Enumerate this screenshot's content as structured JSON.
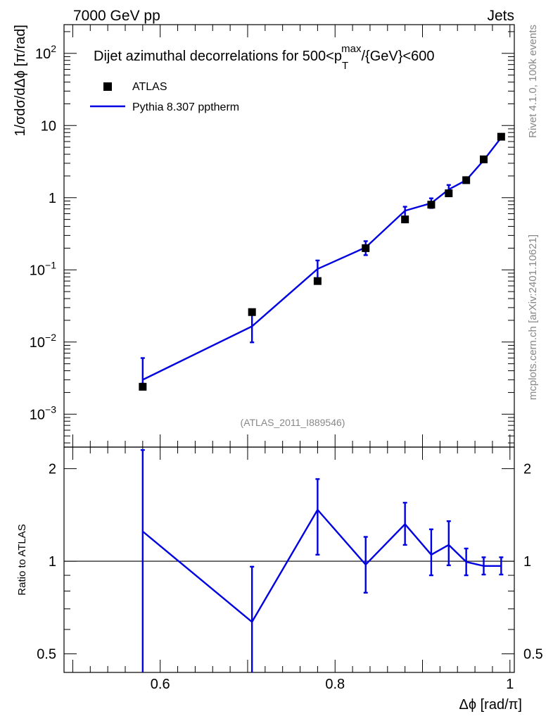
{
  "header": {
    "left": "7000 GeV pp",
    "right": "Jets"
  },
  "side_labels": {
    "rivet": "Rivet 4.1.0,  100k events",
    "mcplots": "mcplots.cern.ch [arXiv:2401.10621]"
  },
  "chart_data": [
    {
      "type": "scatter",
      "panel": "main",
      "title_prefix": "Dijet azimuthal decorrelations for 500<p",
      "title_sub": "T",
      "title_sup": "max",
      "title_suffix": "/{GeV}<600",
      "ylabel": "1/σdσ/dΔϕ [π/rad]",
      "yscale": "log",
      "ylim": [
        0.00035,
        250
      ],
      "xlim": [
        0.49,
        1.005
      ],
      "watermark": "(ATLAS_2011_I889546)",
      "y_ticks": [
        {
          "value": 0.001,
          "base": "10",
          "exp": "−3"
        },
        {
          "value": 0.01,
          "base": "10",
          "exp": "−2"
        },
        {
          "value": 0.1,
          "base": "10",
          "exp": "−1"
        },
        {
          "value": 1,
          "base": "1",
          "exp": ""
        },
        {
          "value": 10,
          "base": "10",
          "exp": ""
        },
        {
          "value": 100,
          "base": "10",
          "exp": "2"
        }
      ],
      "legend": [
        {
          "label": "ATLAS",
          "style": "marker"
        },
        {
          "label": "Pythia 8.307 pptherm",
          "style": "line"
        }
      ],
      "x": [
        0.58,
        0.705,
        0.78,
        0.835,
        0.88,
        0.91,
        0.93,
        0.95,
        0.97,
        0.99
      ],
      "series": [
        {
          "name": "ATLAS",
          "values": [
            0.0024,
            0.026,
            0.07,
            0.2,
            0.5,
            0.8,
            1.15,
            1.75,
            3.4,
            7.0
          ]
        },
        {
          "name": "Pythia 8.307 pptherm",
          "color": "#0000e0",
          "values": [
            0.003,
            0.0165,
            0.103,
            0.205,
            0.66,
            0.84,
            1.3,
            1.75,
            3.3,
            6.8
          ],
          "err_low": [
            0.00265,
            0.0099,
            0.073,
            0.16,
            0.5,
            0.72,
            1.13,
            1.6,
            3.1,
            6.4
          ],
          "err_high": [
            0.006,
            0.024,
            0.135,
            0.25,
            0.75,
            0.98,
            1.5,
            1.9,
            3.5,
            7.2
          ]
        }
      ]
    },
    {
      "type": "line",
      "panel": "ratio",
      "ylabel": "Ratio to ATLAS",
      "xlabel": "Δϕ [rad/π]",
      "yscale": "log",
      "ylim": [
        0.435,
        2.35
      ],
      "xlim": [
        0.49,
        1.005
      ],
      "reference": 1,
      "x_ticks": [
        "0.6",
        "0.8",
        "1"
      ],
      "x_tick_values": [
        0.6,
        0.8,
        1.0
      ],
      "y_ticks": [
        "0.5",
        "1",
        "2"
      ],
      "y_tick_values": [
        0.5,
        1,
        2
      ],
      "x": [
        0.58,
        0.705,
        0.78,
        0.835,
        0.88,
        0.91,
        0.93,
        0.95,
        0.97,
        0.99
      ],
      "series": [
        {
          "name": "Pythia 8.307 pptherm",
          "color": "#0000e0",
          "values": [
            1.25,
            0.635,
            1.47,
            0.975,
            1.32,
            1.05,
            1.13,
            0.995,
            0.965,
            0.965
          ],
          "err_low": [
            0.4,
            0.35,
            1.05,
            0.79,
            1.13,
            0.9,
            0.97,
            0.9,
            0.905,
            0.905
          ],
          "err_high": [
            2.3,
            0.96,
            1.85,
            1.2,
            1.55,
            1.27,
            1.35,
            1.1,
            1.03,
            1.03
          ]
        }
      ]
    }
  ]
}
